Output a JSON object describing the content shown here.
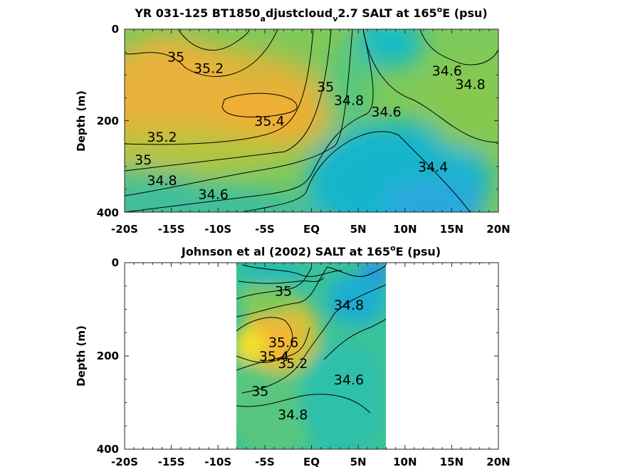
{
  "chart_data": [
    {
      "type": "heatmap",
      "title_main": "YR 031-125 BT1850",
      "title_sub1": "a",
      "title_mid": "djustcloud",
      "title_sub2": "v",
      "title_tail1": "2.7 SALT at 165",
      "title_sup": "o",
      "title_tail2": "E (psu)",
      "ylabel": "Depth (m)",
      "xlim": [
        -20,
        20
      ],
      "ylim": [
        0,
        400
      ],
      "xticks": [
        "-20S",
        "-15S",
        "-10S",
        "-5S",
        "EQ",
        "5N",
        "10N",
        "15N",
        "20N"
      ],
      "yticks": [
        "0",
        "200",
        "400"
      ],
      "contour_labels": [
        {
          "text": "35",
          "value": 35.0,
          "lat": -14.5,
          "depth": 60
        },
        {
          "text": "35.2",
          "value": 35.2,
          "lat": -11.0,
          "depth": 85
        },
        {
          "text": "35.4",
          "value": 35.4,
          "lat": -4.5,
          "depth": 200
        },
        {
          "text": "35.2",
          "value": 35.2,
          "lat": -16.0,
          "depth": 235
        },
        {
          "text": "35",
          "value": 35.0,
          "lat": -18.0,
          "depth": 285
        },
        {
          "text": "34.8",
          "value": 34.8,
          "lat": -16.0,
          "depth": 330
        },
        {
          "text": "34.6",
          "value": 34.6,
          "lat": -10.5,
          "depth": 360
        },
        {
          "text": "35",
          "value": 35.0,
          "lat": 1.5,
          "depth": 125
        },
        {
          "text": "34.8",
          "value": 34.8,
          "lat": 4.0,
          "depth": 155
        },
        {
          "text": "34.6",
          "value": 34.6,
          "lat": 8.0,
          "depth": 180
        },
        {
          "text": "34.4",
          "value": 34.4,
          "lat": 13.0,
          "depth": 300
        },
        {
          "text": "34.6",
          "value": 34.6,
          "lat": 14.5,
          "depth": 90
        },
        {
          "text": "34.8",
          "value": 34.8,
          "lat": 17.0,
          "depth": 120
        }
      ]
    },
    {
      "type": "heatmap",
      "title_main": "Johnson et al (2002) SALT at 165",
      "title_sup": "o",
      "title_tail": "E (psu)",
      "ylabel": "Depth (m)",
      "xlim": [
        -20,
        20
      ],
      "ylim": [
        0,
        400
      ],
      "data_lat_range": [
        -8,
        8
      ],
      "xticks": [
        "-20S",
        "-15S",
        "-10S",
        "-5S",
        "EQ",
        "5N",
        "10N",
        "15N",
        "20N"
      ],
      "yticks": [
        "0",
        "200",
        "400"
      ],
      "contour_labels": [
        {
          "text": "35",
          "value": 35.0,
          "lat": -3.0,
          "depth": 60
        },
        {
          "text": "34.8",
          "value": 34.8,
          "lat": 4.0,
          "depth": 90
        },
        {
          "text": "35.6",
          "value": 35.6,
          "lat": -3.0,
          "depth": 170
        },
        {
          "text": "35.4",
          "value": 35.4,
          "lat": -4.0,
          "depth": 200
        },
        {
          "text": "35.2",
          "value": 35.2,
          "lat": -2.0,
          "depth": 215
        },
        {
          "text": "34.6",
          "value": 34.6,
          "lat": 4.0,
          "depth": 250
        },
        {
          "text": "35",
          "value": 35.0,
          "lat": -5.5,
          "depth": 275
        },
        {
          "text": "34.8",
          "value": 34.8,
          "lat": -2.0,
          "depth": 325
        }
      ]
    }
  ]
}
